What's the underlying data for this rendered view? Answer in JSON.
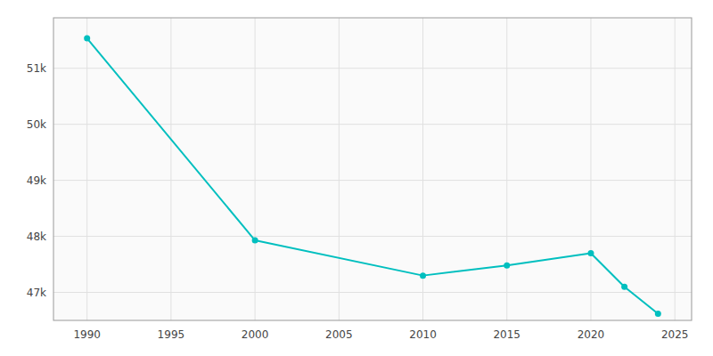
{
  "chart_data": {
    "type": "line",
    "x": [
      1990,
      2000,
      2010,
      2015,
      2020,
      2022,
      2024
    ],
    "values": [
      51534,
      47929,
      47300,
      47480,
      47700,
      47100,
      46620
    ],
    "color": "#00BFBF",
    "marker": "circle",
    "xlim": [
      1988,
      2026
    ],
    "ylim": [
      46500,
      51900
    ],
    "xticks": [
      1990,
      1995,
      2000,
      2005,
      2010,
      2015,
      2020,
      2025
    ],
    "yticks": [
      {
        "value": 47000,
        "label": "47k"
      },
      {
        "value": 48000,
        "label": "48k"
      },
      {
        "value": 49000,
        "label": "49k"
      },
      {
        "value": 50000,
        "label": "50k"
      },
      {
        "value": 51000,
        "label": "51k"
      }
    ],
    "grid": true
  }
}
